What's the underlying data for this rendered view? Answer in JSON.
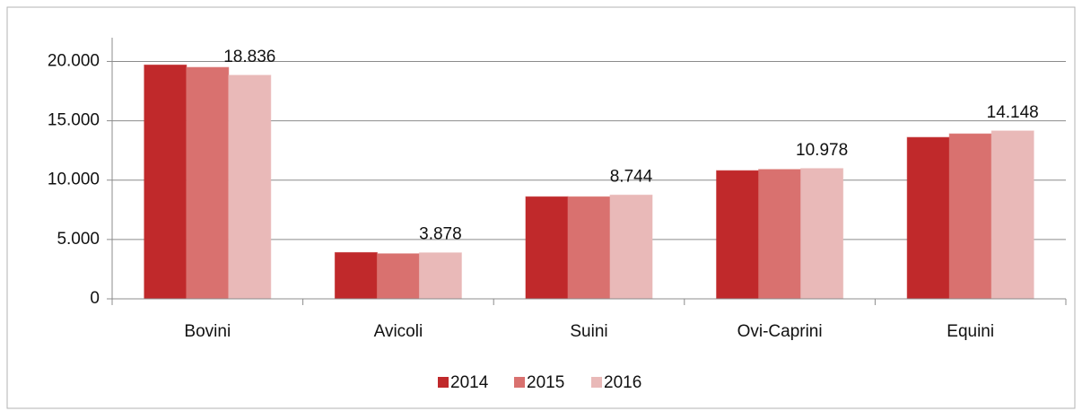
{
  "chart_data": {
    "type": "bar",
    "categories": [
      "Bovini",
      "Avicoli",
      "Suini",
      "Ovi-Caprini",
      "Equini"
    ],
    "series": [
      {
        "name": "2014",
        "color": "#c0292b",
        "values": [
          19700,
          3900,
          8600,
          10800,
          13600
        ]
      },
      {
        "name": "2015",
        "color": "#d9716f",
        "values": [
          19500,
          3800,
          8600,
          10900,
          13900
        ]
      },
      {
        "name": "2016",
        "color": "#e9b9b8",
        "values": [
          18836,
          3878,
          8744,
          10978,
          14148
        ],
        "value_labels": [
          "18.836",
          "3.878",
          "8.744",
          "10.978",
          "14.148"
        ]
      }
    ],
    "ylim": [
      0,
      22000
    ],
    "yticks": [
      0,
      {
        "value": 5000,
        "label": "5.000"
      },
      {
        "value": 10000,
        "label": "10.000"
      },
      {
        "value": 15000,
        "label": "15.000"
      },
      {
        "value": 20000,
        "label": "20.000"
      }
    ],
    "grid": true,
    "legend": "bottom"
  }
}
